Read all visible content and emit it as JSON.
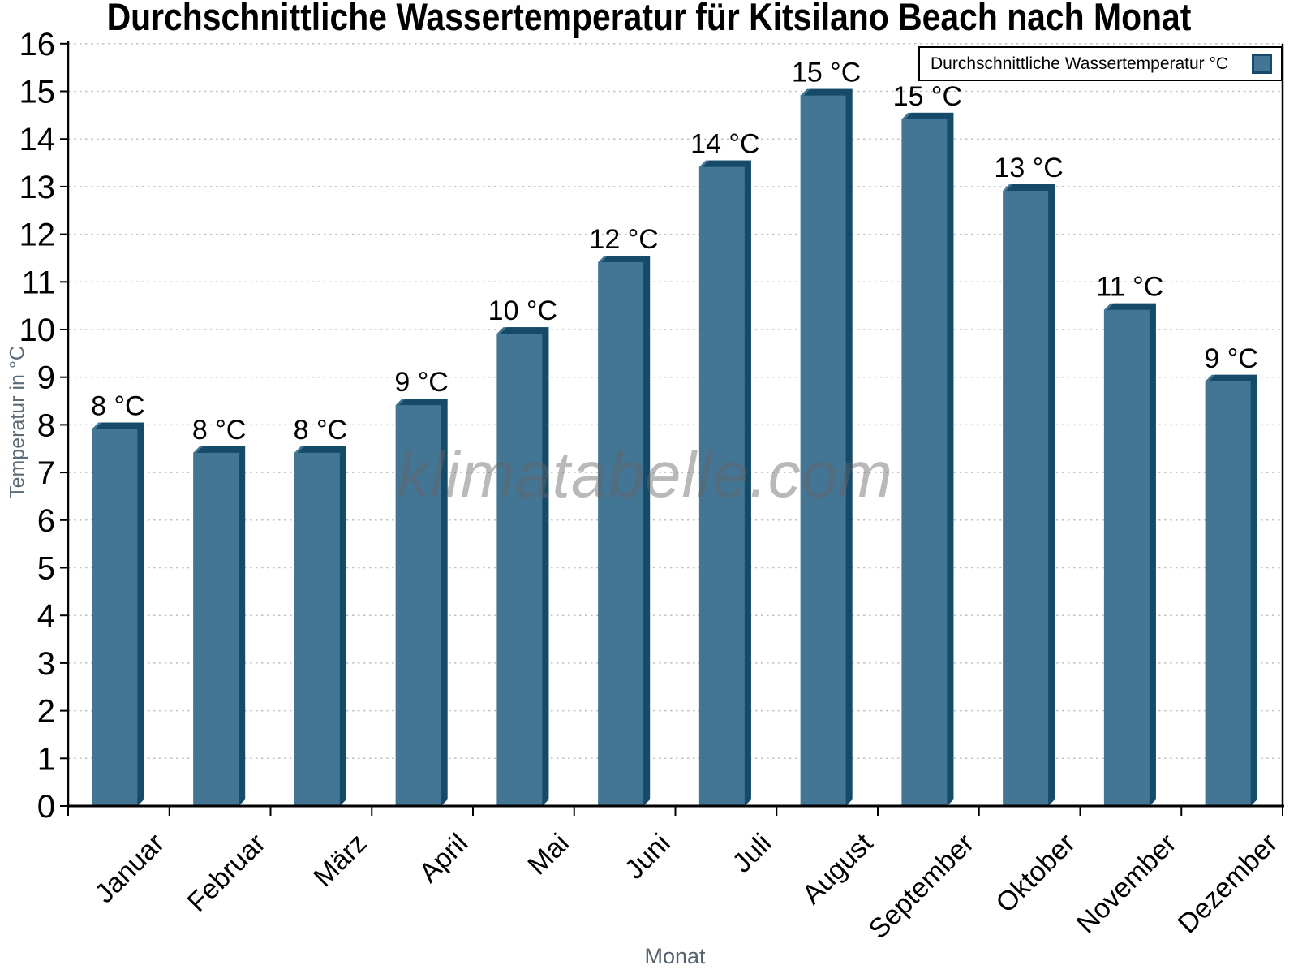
{
  "watermark": "klimatabelle.com",
  "legend": {
    "label": "Durchschnittliche Wassertemperatur °C"
  },
  "chart_data": {
    "type": "bar",
    "title": "Durchschnittliche Wassertemperatur für Kitsilano Beach nach Monat",
    "xlabel": "Monat",
    "ylabel": "Temperatur in °C",
    "ylim": [
      0,
      16
    ],
    "ytick_step": 1,
    "grid": "horizontal dotted gridlines at every 1 °C",
    "legend_position": "top-right",
    "legend_label": "Durchschnittliche Wassertemperatur °C",
    "categories": [
      "Januar",
      "Februar",
      "März",
      "April",
      "Mai",
      "Juni",
      "Juli",
      "August",
      "September",
      "Oktober",
      "November",
      "Dezember"
    ],
    "values": [
      8.05,
      7.55,
      7.55,
      8.55,
      10.05,
      11.55,
      13.55,
      15.05,
      14.55,
      13.05,
      10.55,
      9.05
    ],
    "bar_labels": [
      "8 °C",
      "8 °C",
      "8 °C",
      "9 °C",
      "10 °C",
      "12 °C",
      "14 °C",
      "15 °C",
      "15 °C",
      "13 °C",
      "11 °C",
      "9 °C"
    ],
    "colors": {
      "bar_fill": "#437695",
      "bar_edge": "#154b68",
      "grid": "#c1c1c1",
      "axis": "#000000",
      "tick_label": "#000000",
      "axis_title": "#5c6b78",
      "watermark": "#9b9b9b"
    }
  }
}
